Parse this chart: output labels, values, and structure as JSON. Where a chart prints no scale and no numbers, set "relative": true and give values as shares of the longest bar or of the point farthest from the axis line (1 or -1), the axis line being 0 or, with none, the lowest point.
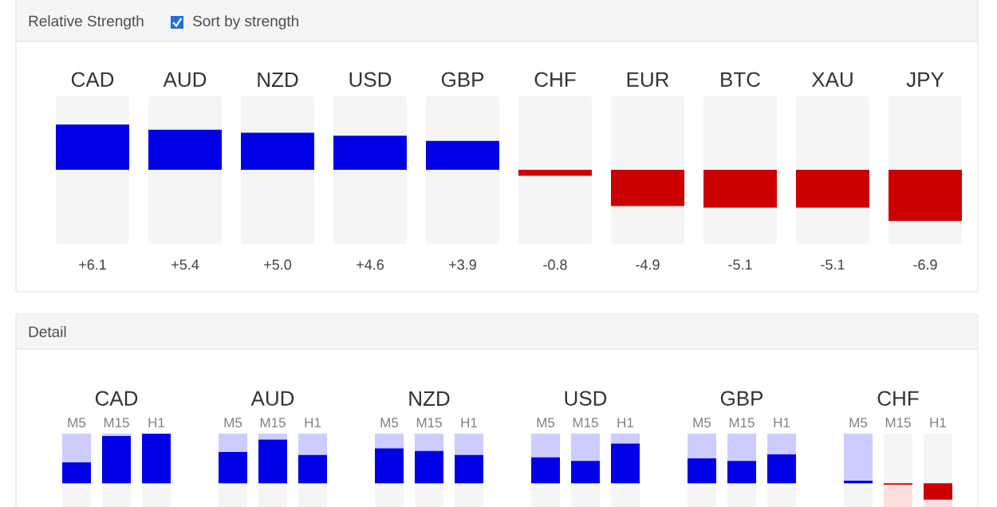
{
  "chart_data": [
    {
      "type": "bar",
      "title": "Relative Strength",
      "annotations": [
        "Sort by strength"
      ],
      "categories": [
        "CAD",
        "AUD",
        "NZD",
        "USD",
        "GBP",
        "CHF",
        "EUR",
        "BTC",
        "XAU",
        "JPY"
      ],
      "values": [
        6.1,
        5.4,
        5.0,
        4.6,
        3.9,
        -0.8,
        -4.9,
        -5.1,
        -5.1,
        -6.9
      ],
      "value_labels": [
        "+6.1",
        "+5.4",
        "+5.0",
        "+4.6",
        "+3.9",
        "-0.8",
        "-4.9",
        "-5.1",
        "-5.1",
        "-6.9"
      ],
      "colors": [
        "#0000e6",
        "#0000e6",
        "#0000e6",
        "#0000e6",
        "#0000e6",
        "#cc0000",
        "#cc0000",
        "#cc0000",
        "#cc0000",
        "#cc0000"
      ],
      "ylim": [
        -10,
        10
      ],
      "tick_labels": "x"
    },
    {
      "type": "bar",
      "title": "Detail",
      "relative": true,
      "tick_labels": "x",
      "categories": [
        "CAD",
        "AUD",
        "NZD",
        "USD",
        "GBP",
        "CHF"
      ],
      "series": [
        {
          "name": "M5",
          "colors": [
            "#0000e6",
            "#0000e6",
            "#0000e6",
            "#0000e6",
            "#0000e6",
            "#0000e6"
          ],
          "values": [
            0.42,
            0.63,
            0.7,
            0.52,
            0.5,
            0.05
          ]
        },
        {
          "name": "M15",
          "colors": [
            "#0000e6",
            "#0000e6",
            "#0000e6",
            "#0000e6",
            "#0000e6",
            "#cc0000"
          ],
          "values": [
            0.95,
            0.88,
            0.65,
            0.45,
            0.45,
            -0.03
          ]
        },
        {
          "name": "H1",
          "colors": [
            "#0000e6",
            "#0000e6",
            "#0000e6",
            "#0000e6",
            "#0000e6",
            "#cc0000"
          ],
          "values": [
            1,
            0.57,
            0.57,
            0.8,
            0.58,
            -0.33
          ]
        }
      ]
    }
  ]
}
